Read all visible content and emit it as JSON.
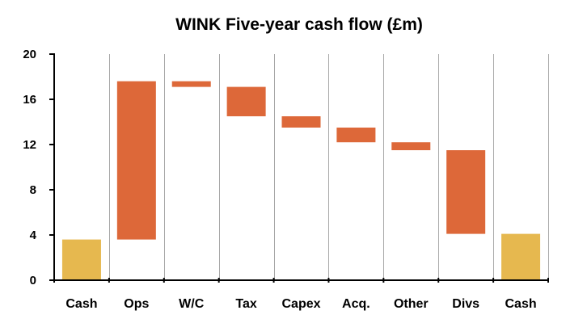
{
  "chart_data": {
    "type": "bar",
    "subtype": "waterfall",
    "title": "WINK Five-year cash flow (£m)",
    "xlabel": "",
    "ylabel": "",
    "ylim": [
      0,
      20
    ],
    "yticks": [
      "0",
      "4",
      "8",
      "12",
      "16",
      "20"
    ],
    "grid": "vertical",
    "categories": [
      "Cash",
      "Ops",
      "W/C",
      "Tax",
      "Capex",
      "Acq.",
      "Other",
      "Divs",
      "Cash"
    ],
    "bars": [
      {
        "category": "Cash",
        "kind": "total",
        "start": 0,
        "end": 3.6
      },
      {
        "category": "Ops",
        "kind": "delta",
        "start": 3.6,
        "end": 17.6
      },
      {
        "category": "W/C",
        "kind": "delta",
        "start": 17.6,
        "end": 17.1
      },
      {
        "category": "Tax",
        "kind": "delta",
        "start": 17.1,
        "end": 14.5
      },
      {
        "category": "Capex",
        "kind": "delta",
        "start": 14.5,
        "end": 13.5
      },
      {
        "category": "Acq.",
        "kind": "delta",
        "start": 13.5,
        "end": 12.2
      },
      {
        "category": "Other",
        "kind": "delta",
        "start": 12.2,
        "end": 11.5
      },
      {
        "category": "Divs",
        "kind": "delta",
        "start": 11.5,
        "end": 4.1
      },
      {
        "category": "Cash",
        "kind": "total",
        "start": 0,
        "end": 4.1
      }
    ],
    "colors": {
      "total": "#e6b84f",
      "delta": "#dd6839",
      "grid": "#a6a6a6",
      "axis": "#000000"
    }
  }
}
